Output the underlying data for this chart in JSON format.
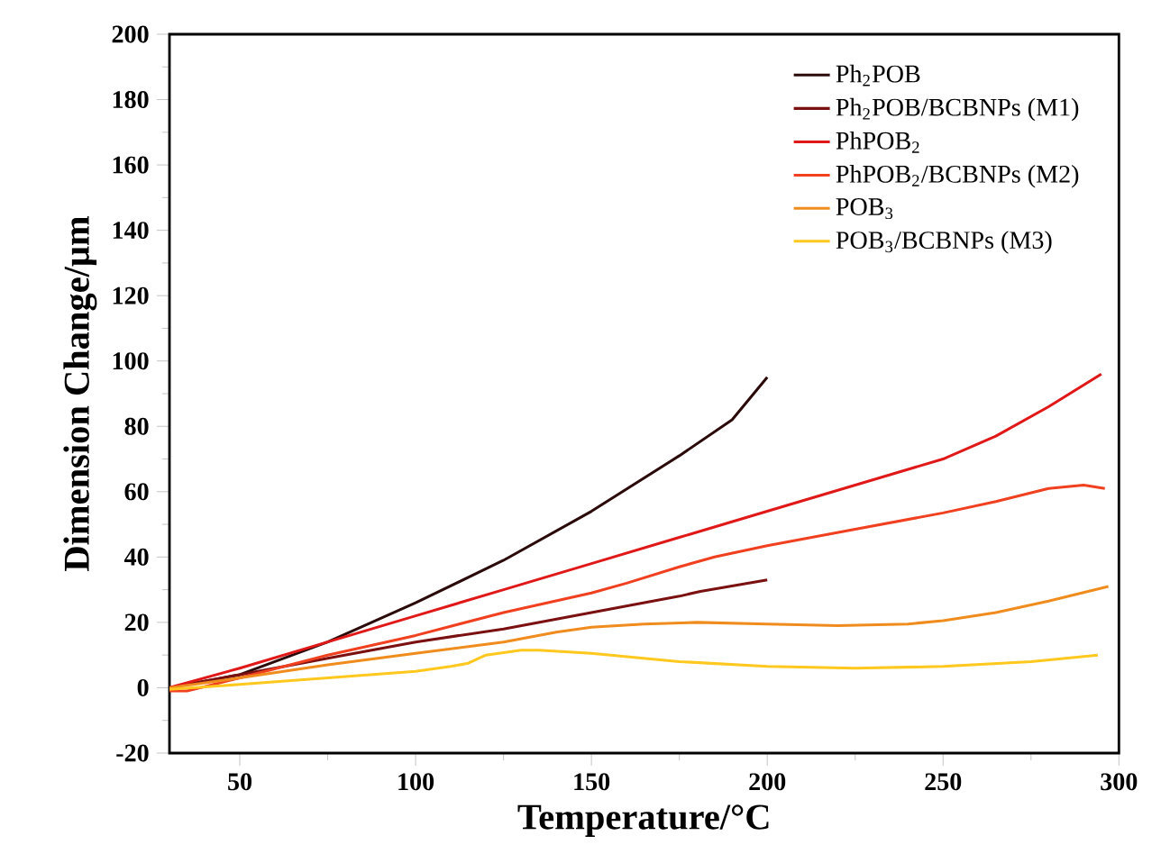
{
  "chart_data": {
    "type": "line",
    "xlabel": "Temperature/°C",
    "ylabel": "Dimension Change/μm",
    "xlim": [
      30,
      300
    ],
    "ylim": [
      -20,
      200
    ],
    "xticks": [
      50,
      100,
      150,
      200,
      250,
      300
    ],
    "yticks": [
      -20,
      0,
      20,
      40,
      60,
      80,
      100,
      120,
      140,
      160,
      180,
      200
    ],
    "legend": "top right",
    "grid": false,
    "marker": "none",
    "line_style": "solid",
    "series": [
      {
        "name": "Ph$_{2}$POB",
        "color": "#2b0a0a",
        "x": [
          30,
          50,
          75,
          100,
          125,
          150,
          175,
          190,
          200
        ],
        "values": [
          0,
          4,
          14,
          26,
          39,
          54,
          71,
          82,
          95
        ]
      },
      {
        "name": "Ph$_{2}$POB/BCBNPs (M1)",
        "color": "#7a1010",
        "x": [
          30,
          50,
          75,
          100,
          125,
          150,
          175,
          181,
          200
        ],
        "values": [
          0,
          4,
          9,
          14,
          18,
          23,
          28,
          29.5,
          33
        ]
      },
      {
        "name": "PhPOB$_{2}$",
        "color": "#e01818",
        "x": [
          30,
          50,
          75,
          100,
          125,
          150,
          175,
          200,
          225,
          250,
          265,
          280,
          295
        ],
        "values": [
          0,
          6,
          14,
          22,
          30,
          38,
          46,
          54,
          62,
          70,
          77,
          86,
          96
        ]
      },
      {
        "name": "PhPOB$_{2}$/BCBNPs (M2)",
        "color": "#f04020",
        "x": [
          30,
          35,
          50,
          75,
          100,
          125,
          150,
          160,
          175,
          185,
          200,
          225,
          250,
          265,
          280,
          290,
          296
        ],
        "values": [
          -1,
          -1,
          3,
          10,
          16,
          23,
          29,
          32,
          37,
          40,
          43.5,
          48.5,
          53.5,
          57,
          61,
          62,
          61
        ]
      },
      {
        "name": "POB$_{3}$",
        "color": "#f08c1e",
        "x": [
          30,
          50,
          75,
          100,
          125,
          140,
          150,
          165,
          180,
          200,
          220,
          240,
          250,
          265,
          280,
          297
        ],
        "values": [
          0,
          3,
          7,
          10.5,
          14,
          17,
          18.5,
          19.5,
          20,
          19.5,
          19,
          19.5,
          20.5,
          23,
          26.5,
          31
        ]
      },
      {
        "name": "POB$_{3}$/BCBNPs (M3)",
        "color": "#ffc81e",
        "x": [
          30,
          50,
          75,
          100,
          110,
          115,
          120,
          130,
          135,
          150,
          175,
          200,
          225,
          250,
          275,
          294
        ],
        "values": [
          -0.5,
          1,
          3,
          5,
          6.5,
          7.5,
          10,
          11.5,
          11.5,
          10.5,
          8,
          6.5,
          6,
          6.5,
          8,
          10
        ]
      }
    ]
  }
}
